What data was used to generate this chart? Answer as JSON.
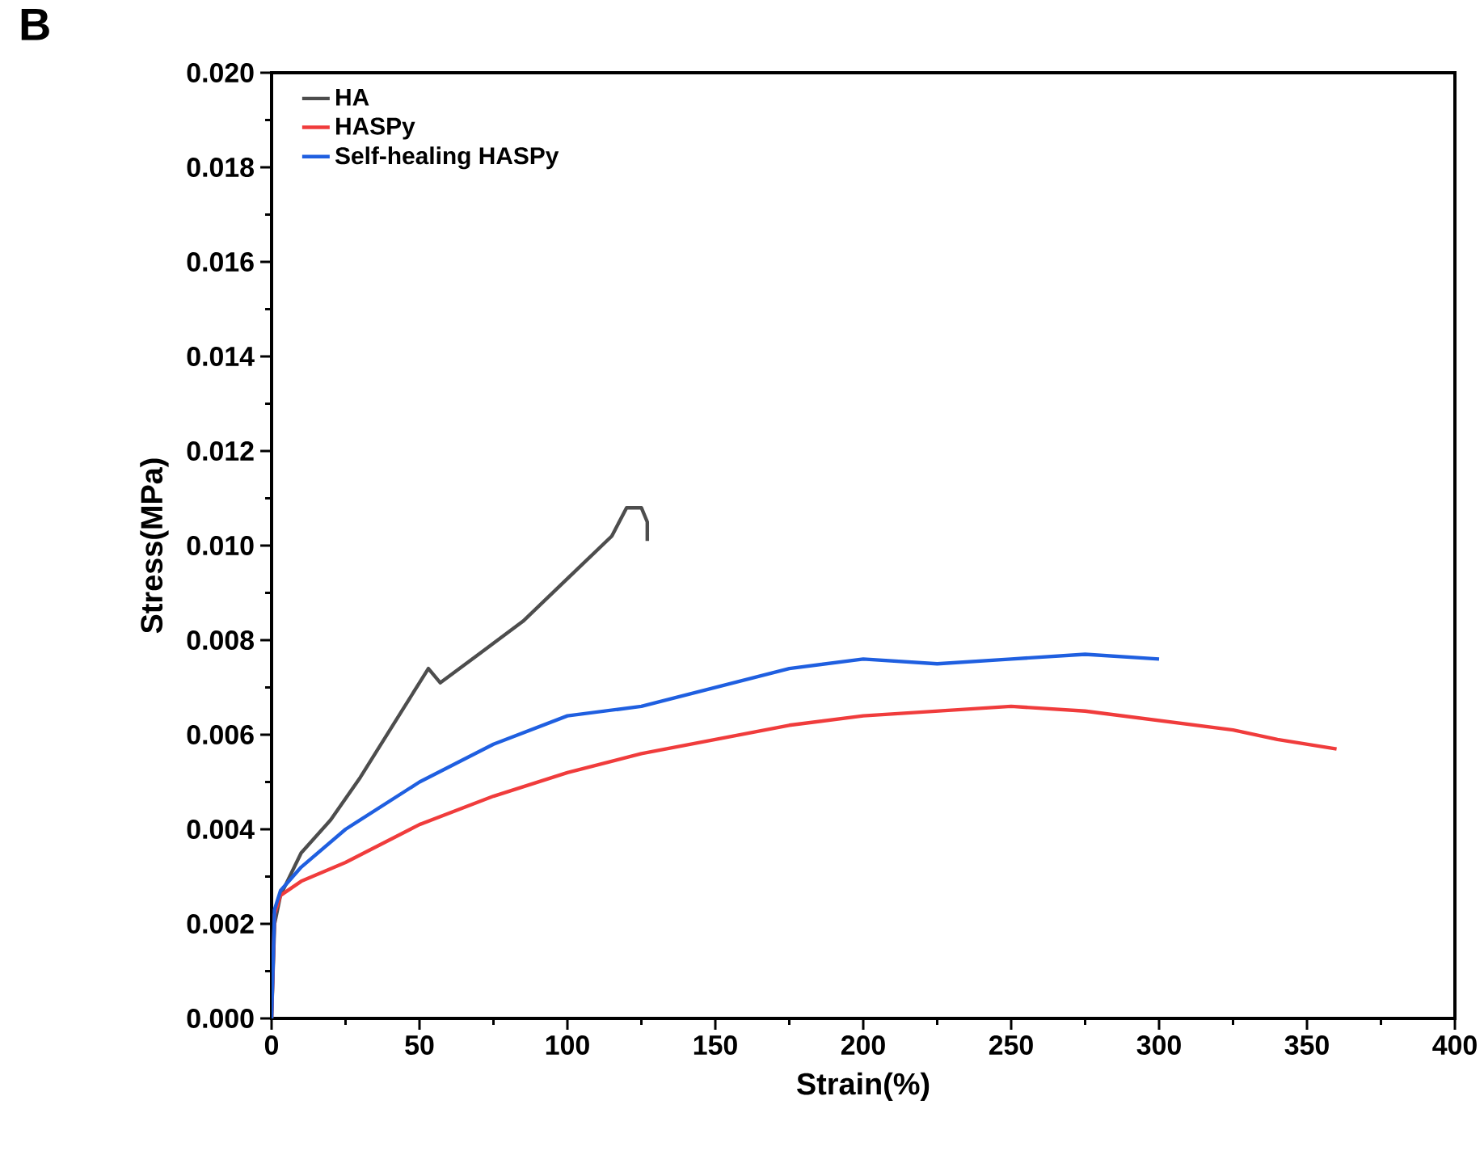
{
  "chart_data": {
    "type": "line",
    "xlabel": "Strain(%)",
    "ylabel": "Stress(MPa)",
    "annotations": [
      "B"
    ],
    "xlim": [
      0,
      400
    ],
    "xticks": [
      0,
      50,
      100,
      150,
      200,
      250,
      300,
      350,
      400
    ],
    "ylim": [
      0,
      0.02
    ],
    "yticks": [
      {
        "value": 0,
        "label": "0.000"
      },
      {
        "value": 0.002,
        "label": "0.002"
      },
      {
        "value": 0.004,
        "label": "0.004"
      },
      {
        "value": 0.006,
        "label": "0.006"
      },
      {
        "value": 0.008,
        "label": "0.008"
      },
      {
        "value": 0.01,
        "label": "0.010"
      },
      {
        "value": 0.012,
        "label": "0.012"
      },
      {
        "value": 0.014,
        "label": "0.014"
      },
      {
        "value": 0.016,
        "label": "0.016"
      },
      {
        "value": 0.018,
        "label": "0.018"
      },
      {
        "value": 0.02,
        "label": "0.020"
      }
    ],
    "grid": false,
    "legend": "top left",
    "marker": "none",
    "line_style": "solid",
    "series": [
      {
        "name": "HA",
        "color": "#4d4d4d",
        "x": [
          0,
          1,
          3,
          10,
          20,
          30,
          45,
          53,
          57,
          70,
          85,
          100,
          115,
          120,
          125,
          127,
          127
        ],
        "values": [
          0,
          0.002,
          0.0026,
          0.0035,
          0.0042,
          0.0051,
          0.0066,
          0.0074,
          0.0071,
          0.0077,
          0.0084,
          0.0093,
          0.0102,
          0.0108,
          0.0108,
          0.0105,
          0.0101
        ]
      },
      {
        "name": "HASPy",
        "color": "#f03c3c",
        "x": [
          0,
          1,
          3,
          10,
          25,
          50,
          75,
          100,
          125,
          150,
          175,
          200,
          225,
          250,
          275,
          300,
          325,
          340,
          360
        ],
        "values": [
          0,
          0.0022,
          0.0026,
          0.0029,
          0.0033,
          0.0041,
          0.0047,
          0.0052,
          0.0056,
          0.0059,
          0.0062,
          0.0064,
          0.0065,
          0.0066,
          0.0065,
          0.0063,
          0.0061,
          0.0059,
          0.0057
        ]
      },
      {
        "name": "Self-healing HASPy",
        "color": "#1f5fe0",
        "x": [
          0,
          1,
          3,
          10,
          25,
          50,
          75,
          100,
          125,
          150,
          175,
          200,
          225,
          250,
          275,
          300
        ],
        "values": [
          0,
          0.0023,
          0.0027,
          0.0032,
          0.004,
          0.005,
          0.0058,
          0.0064,
          0.0066,
          0.007,
          0.0074,
          0.0076,
          0.0075,
          0.0076,
          0.0077,
          0.0076
        ]
      }
    ]
  }
}
